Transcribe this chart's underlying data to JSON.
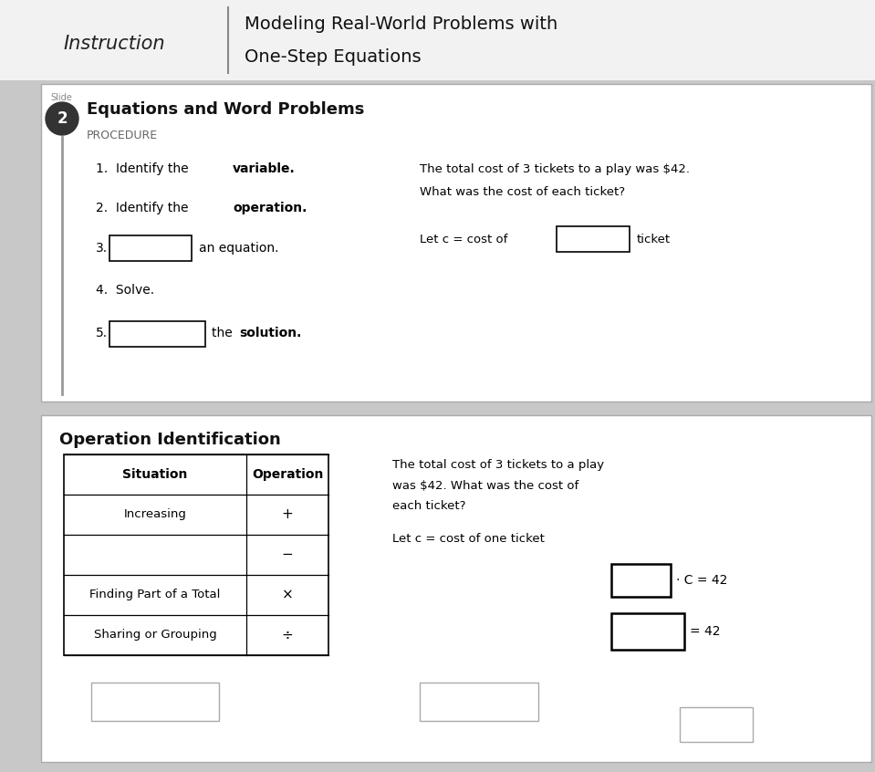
{
  "bg_color": "#c8c8c8",
  "header_bg": "#f0f0f0",
  "header_label": "Instruction",
  "header_title_line1": "Modeling Real-World Problems with",
  "header_title_line2": "One-Step Equations",
  "slide_label": "Slide",
  "slide_number": "2",
  "section_title": "Equations and Word Problems",
  "procedure_label": "PROCEDURE",
  "word_problem_line1": "The total cost of 3 tickets to a play was $42.",
  "word_problem_line2": "What was the cost of each ticket?",
  "let_statement": "Let c = cost of",
  "let_end": "ticket",
  "step3_suffix": "an equation.",
  "step4": "4.  Solve.",
  "step5_suffix": "the solution.",
  "op_id_title": "Operation Identification",
  "table_headers": [
    "Situation",
    "Operation"
  ],
  "table_rows": [
    [
      "Increasing",
      "+"
    ],
    [
      "",
      "−"
    ],
    [
      "Finding Part of a Total",
      "×"
    ],
    [
      "Sharing or Grouping",
      "÷"
    ]
  ],
  "right_problem_line1": "The total cost of 3 tickets to a play",
  "right_problem_line2": "was $42. What was the cost of",
  "right_problem_line3": "each ticket?",
  "let_one": "Let c = cost of one ticket",
  "eq1_suffix": "· C = 42",
  "eq2_suffix": "= 42"
}
